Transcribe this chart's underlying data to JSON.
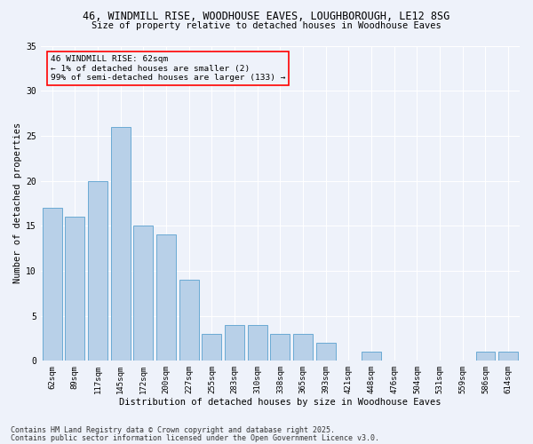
{
  "title_line1": "46, WINDMILL RISE, WOODHOUSE EAVES, LOUGHBOROUGH, LE12 8SG",
  "title_line2": "Size of property relative to detached houses in Woodhouse Eaves",
  "xlabel": "Distribution of detached houses by size in Woodhouse Eaves",
  "ylabel": "Number of detached properties",
  "categories": [
    "62sqm",
    "89sqm",
    "117sqm",
    "145sqm",
    "172sqm",
    "200sqm",
    "227sqm",
    "255sqm",
    "283sqm",
    "310sqm",
    "338sqm",
    "365sqm",
    "393sqm",
    "421sqm",
    "448sqm",
    "476sqm",
    "504sqm",
    "531sqm",
    "559sqm",
    "586sqm",
    "614sqm"
  ],
  "values": [
    17,
    16,
    20,
    26,
    15,
    14,
    9,
    3,
    4,
    4,
    3,
    3,
    2,
    0,
    1,
    0,
    0,
    0,
    0,
    1,
    1
  ],
  "bar_color": "#b8d0e8",
  "bar_edge_color": "#6aaad4",
  "background_color": "#eef2fa",
  "grid_color": "#ffffff",
  "ylim": [
    0,
    35
  ],
  "yticks": [
    0,
    5,
    10,
    15,
    20,
    25,
    30,
    35
  ],
  "annotation_title": "46 WINDMILL RISE: 62sqm",
  "annotation_line2": "← 1% of detached houses are smaller (2)",
  "annotation_line3": "99% of semi-detached houses are larger (133) →",
  "footer_line1": "Contains HM Land Registry data © Crown copyright and database right 2025.",
  "footer_line2": "Contains public sector information licensed under the Open Government Licence v3.0."
}
